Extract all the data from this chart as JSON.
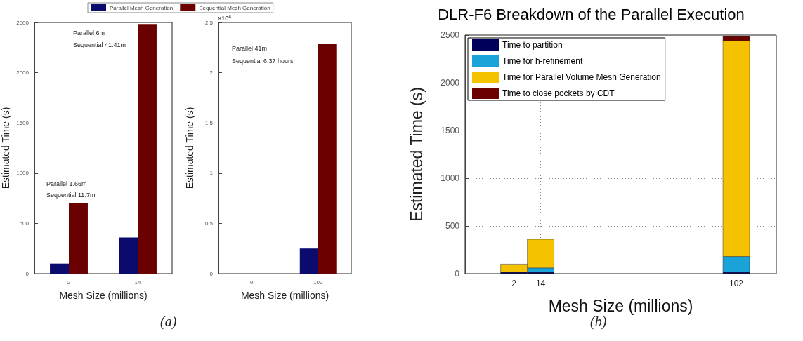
{
  "chart_data": [
    {
      "type": "bar",
      "ylabel": "Estimated Time (s)",
      "xlabel": "Mesh Size (millions)",
      "categories": [
        "2",
        "14"
      ],
      "legend": "top",
      "series": [
        {
          "name": "Parallel Mesh Generation",
          "color": "#0b0b6e",
          "values": [
            100,
            360
          ]
        },
        {
          "name": "Sequential Mesh Generation",
          "color": "#6b0000",
          "values": [
            700,
            2485
          ]
        }
      ],
      "ylim": [
        0,
        2500
      ],
      "yticks": [
        0,
        500,
        1000,
        1500,
        2000,
        2500
      ],
      "annotations": [
        "(a)",
        "Parallel 1.66m",
        "Sequential 11.7m",
        "Parallel 6m",
        "Sequential 41.41m"
      ]
    },
    {
      "type": "bar",
      "ylabel": "Estimated Time (s)",
      "xlabel": "Mesh Size (millions)",
      "categories": [
        "0",
        "102"
      ],
      "series": [
        {
          "color": "#0b0b6e",
          "values": [
            0,
            0.25
          ]
        },
        {
          "color": "#6b0000",
          "values": [
            0,
            2.29
          ]
        }
      ],
      "ylim": [
        0,
        2.5
      ],
      "yticks": [
        0,
        0.5,
        1,
        1.5,
        2,
        2.5
      ],
      "annotations": [
        "×10$^{4}$",
        "Parallel 41m",
        "Sequential 6.37 hours"
      ]
    },
    {
      "type": "bar",
      "title": "DLR-F6 Breakdown of the Parallel Execution",
      "ylabel": "Estimated Time (s)",
      "xlabel": "Mesh Size (millions)",
      "stacked": true,
      "legend": "top left",
      "grid": true,
      "x": [
        2,
        14,
        102
      ],
      "xlim": [
        -20,
        120
      ],
      "xticks": [
        2,
        14,
        102
      ],
      "series": [
        {
          "name": "Time to partition",
          "color": "#00005a",
          "values": [
            15,
            15,
            15
          ]
        },
        {
          "name": "Time for h-refinement",
          "color": "#1aa3d9",
          "values": [
            null,
            45,
            165
          ]
        },
        {
          "name": "Time for Parallel Volume Mesh Generation",
          "color": "#f5c200",
          "values": [
            85,
            300,
            2260
          ]
        },
        {
          "name": "Time to close pockets by CDT",
          "color": "#6b0000",
          "values": [
            0,
            0,
            45
          ]
        }
      ],
      "ylim": [
        0,
        2500
      ],
      "yticks": [
        0,
        500,
        1000,
        1500,
        2000,
        2500
      ],
      "annotations": [
        "(b)"
      ]
    }
  ]
}
